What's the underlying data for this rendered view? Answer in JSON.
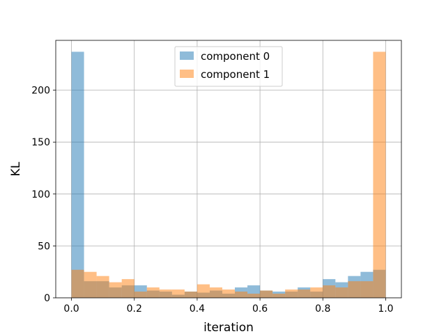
{
  "chart_data": {
    "type": "bar",
    "subtype": "overlaid-histogram",
    "title": "",
    "xlabel": "iteration",
    "ylabel": "KL",
    "xlim": [
      -0.05,
      1.05
    ],
    "ylim": [
      0,
      248
    ],
    "xticks": [
      0.0,
      0.2,
      0.4,
      0.6,
      0.8,
      1.0
    ],
    "xtick_labels": [
      "0.0",
      "0.2",
      "0.4",
      "0.6",
      "0.8",
      "1.0"
    ],
    "yticks": [
      0,
      50,
      100,
      150,
      200
    ],
    "ytick_labels": [
      "0",
      "50",
      "100",
      "150",
      "200"
    ],
    "grid": true,
    "legend_position": "top-center",
    "bins": 25,
    "bin_range": [
      0,
      1
    ],
    "series": [
      {
        "name": "component 0",
        "color": "#1f77b4",
        "alpha": 0.5,
        "values": [
          237,
          16,
          16,
          10,
          12,
          12,
          7,
          6,
          3,
          6,
          5,
          7,
          4,
          10,
          12,
          7,
          6,
          6,
          10,
          6,
          18,
          15,
          21,
          25,
          27
        ]
      },
      {
        "name": "component 1",
        "color": "#ff7f0e",
        "alpha": 0.5,
        "values": [
          27,
          25,
          21,
          15,
          18,
          6,
          10,
          8,
          8,
          6,
          13,
          10,
          8,
          6,
          4,
          7,
          4,
          8,
          8,
          10,
          12,
          10,
          16,
          16,
          237
        ]
      }
    ]
  }
}
